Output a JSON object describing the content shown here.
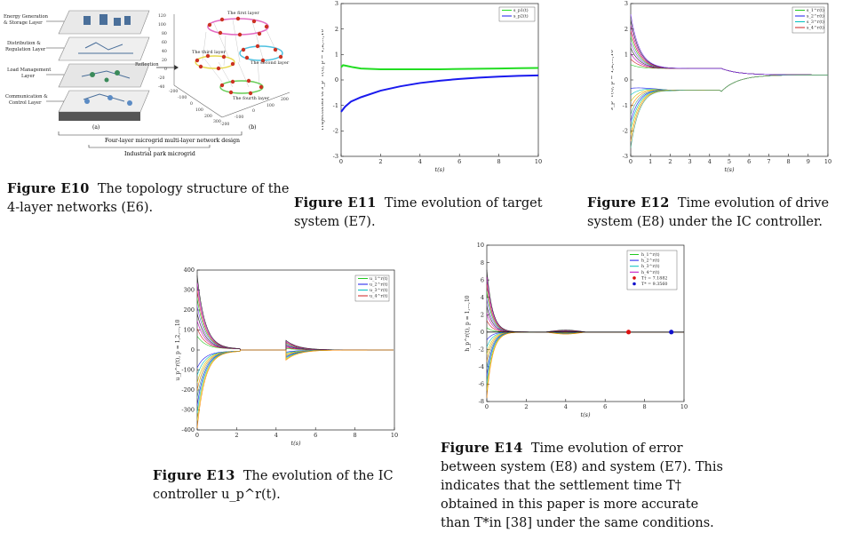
{
  "fig10": {
    "layers": [
      "Energy Generation & Storage Layer",
      "Distribution & Regulation Layer",
      "Load Management Layer",
      "Communication & Control Layer"
    ],
    "sublabel_a": "(a)",
    "sublabel_b": "(b)",
    "reflection": "Reflection",
    "bracket_label": "Four-layer microgrid multi-layer network design",
    "bottom_label": "Industrial park microgrid",
    "layer_names_3d": [
      "The first layer",
      "The second layer",
      "The third layer",
      "The fourth layer"
    ],
    "axis_ticks_z": [
      "120",
      "100",
      "80",
      "60",
      "40",
      "20",
      "0",
      "-20",
      "-40"
    ],
    "axis_ticks_x": [
      "-200",
      "-100",
      "0",
      "100",
      "200",
      "300"
    ],
    "axis_ticks_y": [
      "200",
      "100",
      "0",
      "-100",
      "-200"
    ],
    "caption_num": "Figure E10",
    "caption_text": "The topology structure of the 4-layer networks (E6)."
  },
  "fig11": {
    "caption_num": "Figure E11",
    "caption_text": "Time evolution of target system (E7).",
    "chart_data": {
      "type": "line",
      "xlabel": "t(s)",
      "ylabel": "Trajectories of s_p^r(t), p = 1,2,...,10",
      "xlim": [
        0,
        10
      ],
      "ylim": [
        -3,
        3
      ],
      "xticks": [
        "0",
        "2",
        "4",
        "6",
        "8",
        "10"
      ],
      "yticks": [
        "3",
        "2",
        "1",
        "0",
        "-1",
        "-2",
        "-3"
      ],
      "legend": [
        "s_p1(t)",
        "s_p2(t)"
      ],
      "legend_position": "top-right",
      "colors": [
        "#22dd22",
        "#1a1aee"
      ],
      "series": [
        {
          "name": "s_p1(t)",
          "x": [
            0,
            0.1,
            0.3,
            0.6,
            1,
            2,
            3,
            4,
            5,
            6,
            7,
            8,
            9,
            10
          ],
          "y": [
            0.5,
            0.58,
            0.55,
            0.5,
            0.45,
            0.42,
            0.42,
            0.42,
            0.42,
            0.43,
            0.44,
            0.45,
            0.46,
            0.47
          ]
        },
        {
          "name": "s_p2(t)",
          "x": [
            0,
            0.2,
            0.5,
            1,
            2,
            3,
            4,
            5,
            6,
            7,
            8,
            9,
            10
          ],
          "y": [
            -1.25,
            -1.05,
            -0.85,
            -0.68,
            -0.42,
            -0.25,
            -0.12,
            -0.03,
            0.04,
            0.09,
            0.13,
            0.16,
            0.18
          ]
        }
      ]
    }
  },
  "fig12": {
    "caption_num": "Figure E12",
    "caption_text": "Time evolution of drive system (E8) under the IC controller.",
    "chart_data": {
      "type": "line",
      "xlabel": "t(s)",
      "ylabel": "s_p^r(t), p = 1,2,...,10",
      "xlim": [
        0,
        10
      ],
      "ylim": [
        -3,
        3
      ],
      "xticks": [
        "0",
        "1",
        "2",
        "3",
        "4",
        "5",
        "6",
        "7",
        "8",
        "9",
        "10"
      ],
      "yticks": [
        "3",
        "2",
        "1",
        "0",
        "-1",
        "-2",
        "-3"
      ],
      "legend": [
        "s_1^r(t)",
        "s_2^r(t)",
        "s_3^r(t)",
        "s_4^r(t)"
      ],
      "legend_position": "top-right"
    }
  },
  "fig13": {
    "caption_num": "Figure E13",
    "caption_text": "The evolution of the IC controller u_p^r(t).",
    "chart_data": {
      "type": "line",
      "xlabel": "t(s)",
      "ylabel": "u_p^r(t), p = 1,2,...,10",
      "xlim": [
        0,
        10
      ],
      "ylim": [
        -400,
        400
      ],
      "xticks": [
        "0",
        "2",
        "4",
        "6",
        "8",
        "10"
      ],
      "yticks": [
        "400",
        "300",
        "200",
        "100",
        "0",
        "-100",
        "-200",
        "-300",
        "-400"
      ],
      "legend": [
        "u_1^r(t)",
        "u_2^r(t)",
        "u_3^r(t)",
        "u_4^r(t)"
      ],
      "legend_position": "top-right"
    }
  },
  "fig14": {
    "caption_num": "Figure E14",
    "caption_text": "Time evolution of error between system (E8) and system (E7). This indicates that the settlement time T† obtained in this paper is more accurate than T*in [38] under the same conditions.",
    "chart_data": {
      "type": "line",
      "xlabel": "t(s)",
      "ylabel": "h_p^r(t), p = 1,...,10",
      "xlim": [
        0,
        10
      ],
      "ylim": [
        -8,
        10
      ],
      "xticks": [
        "0",
        "2",
        "4",
        "6",
        "8",
        "10"
      ],
      "yticks": [
        "10",
        "8",
        "6",
        "4",
        "2",
        "0",
        "-2",
        "-4",
        "-6",
        "-8"
      ],
      "legend": [
        "h_1^r(t)",
        "h_2^r(t)",
        "h_3^r(t)",
        "h_4^r(t)",
        "T† = 7.1882",
        "T* = 9.3560"
      ],
      "legend_position": "top-left",
      "markers": [
        {
          "label": "T† = 7.1882",
          "x": 7.1882,
          "y": 0,
          "color": "#dd1111"
        },
        {
          "label": "T* = 9.3560",
          "x": 9.356,
          "y": 0,
          "color": "#1111cc"
        }
      ]
    }
  }
}
